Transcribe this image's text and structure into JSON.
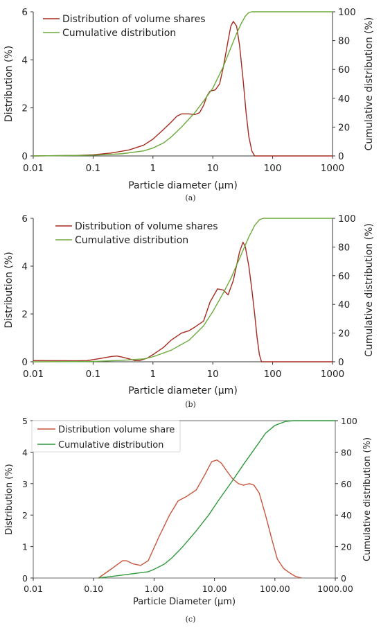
{
  "chart_data": [
    {
      "type": "line",
      "caption": "(a)",
      "xlabel": "Particle diameter (μm)",
      "ylabel": "Distribution (%)",
      "ylabel_right": "Cumulative distribution (%)",
      "xscale": "log",
      "xlim": [
        0.01,
        1000
      ],
      "ylim": [
        0,
        6
      ],
      "ylim_right": [
        0,
        100
      ],
      "x_ticks": [
        "0.01",
        "0.1",
        "1",
        "10",
        "100",
        "1000"
      ],
      "y_ticks": [
        "0",
        "2",
        "4",
        "6"
      ],
      "y_ticks_right": [
        "0",
        "20",
        "40",
        "60",
        "80",
        "100"
      ],
      "grid": false,
      "legend_position": "top-left",
      "series": [
        {
          "name": "Distribution of volume shares",
          "axis": "left",
          "color": "#a52a1f",
          "points": [
            [
              0.01,
              0
            ],
            [
              0.05,
              0.02
            ],
            [
              0.1,
              0.05
            ],
            [
              0.2,
              0.12
            ],
            [
              0.4,
              0.25
            ],
            [
              0.7,
              0.45
            ],
            [
              1,
              0.7
            ],
            [
              1.5,
              1.1
            ],
            [
              2,
              1.4
            ],
            [
              2.5,
              1.65
            ],
            [
              3,
              1.75
            ],
            [
              4,
              1.75
            ],
            [
              5,
              1.72
            ],
            [
              6,
              1.8
            ],
            [
              7,
              2.1
            ],
            [
              8,
              2.5
            ],
            [
              9,
              2.7
            ],
            [
              11,
              2.75
            ],
            [
              13,
              3.0
            ],
            [
              15,
              3.7
            ],
            [
              18,
              4.8
            ],
            [
              20,
              5.4
            ],
            [
              22,
              5.6
            ],
            [
              25,
              5.4
            ],
            [
              28,
              4.6
            ],
            [
              32,
              3.2
            ],
            [
              36,
              1.8
            ],
            [
              40,
              0.8
            ],
            [
              45,
              0.2
            ],
            [
              50,
              0
            ],
            [
              100,
              0
            ],
            [
              1000,
              0
            ]
          ]
        },
        {
          "name": "Cumulative distribution",
          "axis": "right",
          "color": "#6aaa3a",
          "points": [
            [
              0.01,
              0
            ],
            [
              0.1,
              0.5
            ],
            [
              0.3,
              1.5
            ],
            [
              0.7,
              3.5
            ],
            [
              1,
              5.5
            ],
            [
              1.5,
              9
            ],
            [
              2,
              13
            ],
            [
              3,
              20
            ],
            [
              5,
              30
            ],
            [
              7,
              38
            ],
            [
              10,
              47
            ],
            [
              15,
              62
            ],
            [
              20,
              75
            ],
            [
              25,
              85
            ],
            [
              30,
              92
            ],
            [
              35,
              97
            ],
            [
              40,
              99.5
            ],
            [
              45,
              100
            ],
            [
              1000,
              100
            ]
          ]
        }
      ]
    },
    {
      "type": "line",
      "caption": "(b)",
      "xlabel": "Particle diameter (μm)",
      "ylabel": "Distribution  (%)",
      "ylabel_right": "Cumulative distribution (%)",
      "xscale": "log",
      "xlim": [
        0.01,
        1000
      ],
      "ylim": [
        0,
        6
      ],
      "ylim_right": [
        0,
        100
      ],
      "x_ticks": [
        "0.01",
        "0.1",
        "1",
        "10",
        "100",
        "1000"
      ],
      "y_ticks": [
        "0",
        "2",
        "4",
        "6"
      ],
      "y_ticks_right": [
        "0",
        "20",
        "40",
        "60",
        "80",
        "100"
      ],
      "grid": false,
      "legend_position": "top-left",
      "series": [
        {
          "name": "Distribution of volume shares",
          "axis": "left",
          "color": "#a52a1f",
          "points": [
            [
              0.01,
              0.05
            ],
            [
              0.05,
              0.04
            ],
            [
              0.08,
              0.05
            ],
            [
              0.12,
              0.12
            ],
            [
              0.2,
              0.22
            ],
            [
              0.25,
              0.24
            ],
            [
              0.3,
              0.2
            ],
            [
              0.4,
              0.12
            ],
            [
              0.5,
              0.05
            ],
            [
              0.6,
              0.05
            ],
            [
              0.8,
              0.15
            ],
            [
              1,
              0.3
            ],
            [
              1.5,
              0.6
            ],
            [
              2,
              0.9
            ],
            [
              3,
              1.2
            ],
            [
              4,
              1.3
            ],
            [
              5,
              1.45
            ],
            [
              7,
              1.7
            ],
            [
              9,
              2.5
            ],
            [
              12,
              3.05
            ],
            [
              15,
              3.0
            ],
            [
              18,
              2.8
            ],
            [
              22,
              3.4
            ],
            [
              28,
              4.6
            ],
            [
              32,
              5.0
            ],
            [
              35,
              4.8
            ],
            [
              40,
              4.0
            ],
            [
              45,
              3.0
            ],
            [
              50,
              2.0
            ],
            [
              55,
              1.0
            ],
            [
              60,
              0.3
            ],
            [
              65,
              0
            ],
            [
              100,
              0
            ],
            [
              1000,
              0
            ]
          ]
        },
        {
          "name": "Cumulative distribution",
          "axis": "right",
          "color": "#6aaa3a",
          "points": [
            [
              0.01,
              0
            ],
            [
              0.1,
              0.2
            ],
            [
              0.3,
              1
            ],
            [
              0.7,
              2
            ],
            [
              1,
              3.5
            ],
            [
              2,
              8
            ],
            [
              4,
              15
            ],
            [
              7,
              25
            ],
            [
              10,
              35
            ],
            [
              15,
              48
            ],
            [
              20,
              58
            ],
            [
              30,
              75
            ],
            [
              40,
              87
            ],
            [
              50,
              95
            ],
            [
              60,
              99
            ],
            [
              70,
              100
            ],
            [
              1000,
              100
            ]
          ]
        }
      ]
    },
    {
      "type": "line",
      "caption": "(c)",
      "xlabel": "Particle Diameter (μm)",
      "ylabel": "Distribution (%)",
      "ylabel_right": "Cumulative distribution (%)",
      "xscale": "log",
      "xlim": [
        0.01,
        1000
      ],
      "ylim": [
        0,
        5
      ],
      "ylim_right": [
        0,
        100
      ],
      "x_ticks": [
        "0.01",
        "0.10",
        "1.00",
        "10.00",
        "100.00",
        "1000.00"
      ],
      "y_ticks": [
        "0",
        "1",
        "2",
        "3",
        "4",
        "5"
      ],
      "y_ticks_right": [
        "0",
        "20",
        "40",
        "60",
        "80",
        "100"
      ],
      "grid": false,
      "legend_position": "top-left",
      "series": [
        {
          "name": "Distribution volume share",
          "axis": "left",
          "color": "#c8553d",
          "points": [
            [
              0.12,
              0
            ],
            [
              0.2,
              0.3
            ],
            [
              0.3,
              0.55
            ],
            [
              0.35,
              0.55
            ],
            [
              0.45,
              0.45
            ],
            [
              0.6,
              0.4
            ],
            [
              0.8,
              0.55
            ],
            [
              1.2,
              1.3
            ],
            [
              1.8,
              2.0
            ],
            [
              2.5,
              2.45
            ],
            [
              3.5,
              2.6
            ],
            [
              5,
              2.8
            ],
            [
              7,
              3.3
            ],
            [
              9,
              3.7
            ],
            [
              11,
              3.75
            ],
            [
              13,
              3.65
            ],
            [
              16,
              3.4
            ],
            [
              20,
              3.15
            ],
            [
              25,
              3.0
            ],
            [
              30,
              2.95
            ],
            [
              38,
              3.0
            ],
            [
              45,
              2.95
            ],
            [
              55,
              2.7
            ],
            [
              70,
              2.0
            ],
            [
              90,
              1.2
            ],
            [
              110,
              0.6
            ],
            [
              140,
              0.3
            ],
            [
              180,
              0.15
            ],
            [
              220,
              0.05
            ],
            [
              280,
              0
            ]
          ]
        },
        {
          "name": "Cumulative distribution",
          "axis": "right",
          "color": "#2e9a3a",
          "points": [
            [
              0.12,
              0
            ],
            [
              0.2,
              1
            ],
            [
              0.4,
              2.5
            ],
            [
              0.8,
              4
            ],
            [
              1,
              5.5
            ],
            [
              1.5,
              9
            ],
            [
              2,
              13
            ],
            [
              3,
              20
            ],
            [
              5,
              30
            ],
            [
              8,
              40
            ],
            [
              12,
              50
            ],
            [
              20,
              62
            ],
            [
              30,
              72
            ],
            [
              50,
              84
            ],
            [
              70,
              92
            ],
            [
              100,
              97
            ],
            [
              150,
              99.5
            ],
            [
              200,
              100
            ],
            [
              1000,
              100
            ]
          ]
        }
      ]
    }
  ]
}
